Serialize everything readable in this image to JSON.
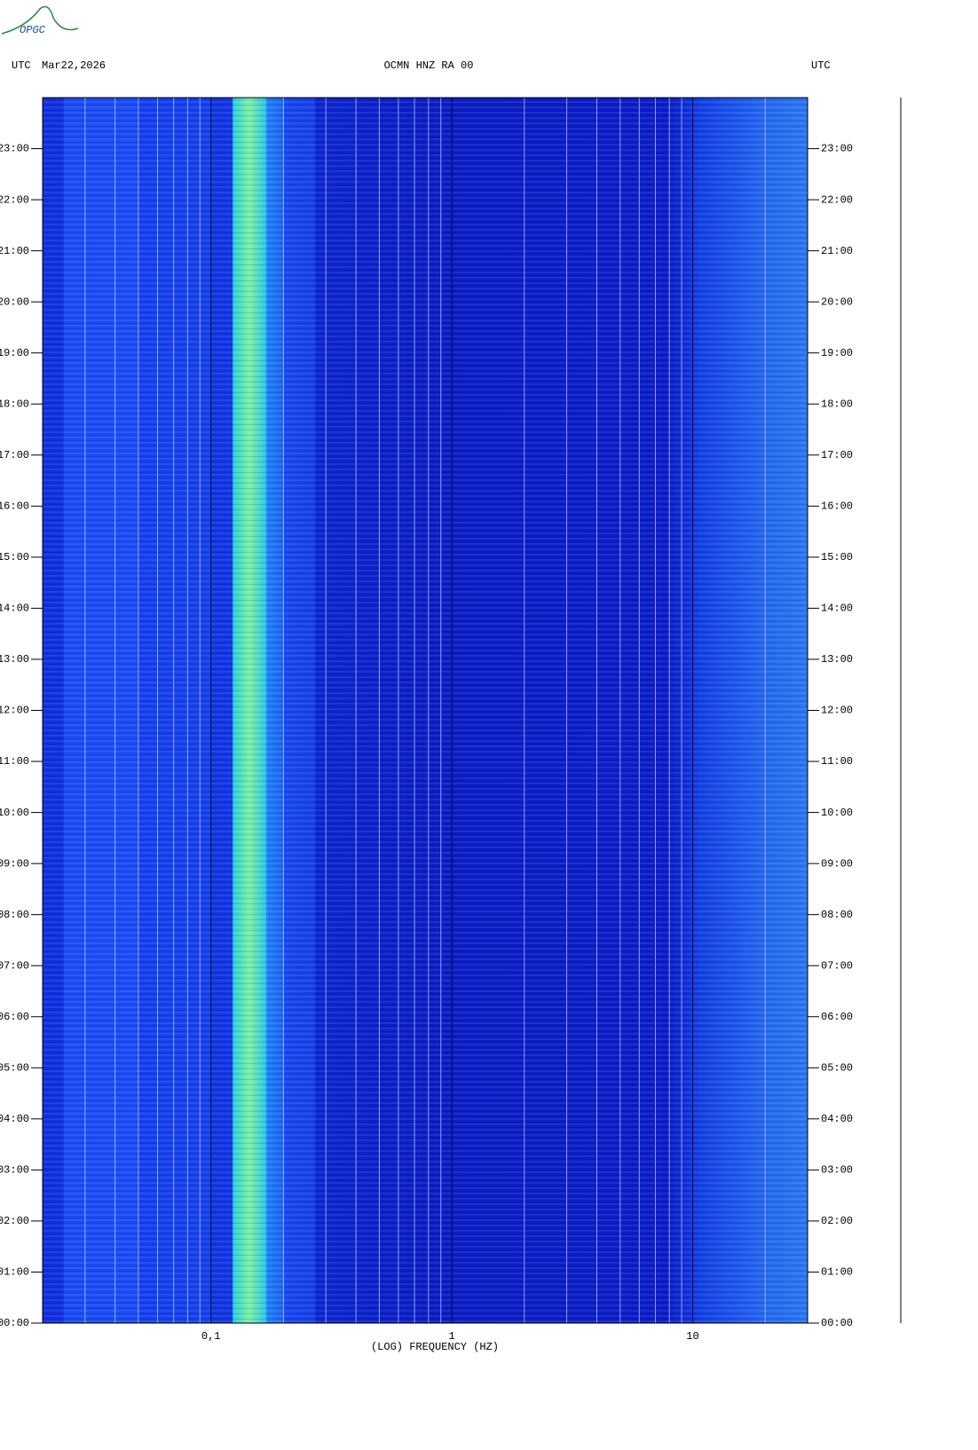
{
  "header": {
    "logo": "OPGC",
    "left_label": "UTC",
    "date": "Mar22,2026",
    "station": "OCMN HNZ RA 00",
    "right_label": "UTC"
  },
  "chart_data": {
    "type": "spectrogram",
    "x_label": "(LOG) FREQUENCY (HZ)",
    "xscale": "log",
    "xlim": [
      0.02,
      30
    ],
    "xticks": [
      {
        "value": 0.1,
        "label": "0,1"
      },
      1,
      10
    ],
    "xgrid": [
      0.03,
      0.04,
      0.05,
      0.06,
      0.07,
      0.08,
      0.09,
      0.2,
      0.3,
      0.4,
      0.5,
      0.6,
      0.7,
      0.8,
      0.9,
      2,
      3,
      4,
      5,
      6,
      7,
      8,
      9,
      20
    ],
    "ylim": [
      0,
      24
    ],
    "yticks": [
      {
        "value": 0,
        "label": "00:00"
      },
      {
        "value": 1,
        "label": "01:00"
      },
      {
        "value": 2,
        "label": "02:00"
      },
      {
        "value": 3,
        "label": "03:00"
      },
      {
        "value": 4,
        "label": "04:00"
      },
      {
        "value": 5,
        "label": "05:00"
      },
      {
        "value": 6,
        "label": "06:00"
      },
      {
        "value": 7,
        "label": "07:00"
      },
      {
        "value": 8,
        "label": "08:00"
      },
      {
        "value": 9,
        "label": "09:00"
      },
      {
        "value": 10,
        "label": "10:00"
      },
      {
        "value": 11,
        "label": "11:00"
      },
      {
        "value": 12,
        "label": "12:00"
      },
      {
        "value": 13,
        "label": "13:00"
      },
      {
        "value": 14,
        "label": "14:00"
      },
      {
        "value": 15,
        "label": "15:00"
      },
      {
        "value": 16,
        "label": "16:00"
      },
      {
        "value": 17,
        "label": "17:00"
      },
      {
        "value": 18,
        "label": "18:00"
      },
      {
        "value": 19,
        "label": "19:00"
      },
      {
        "value": 20,
        "label": "20:00"
      },
      {
        "value": 21,
        "label": "21:00"
      },
      {
        "value": 22,
        "label": "22:00"
      },
      {
        "value": 23,
        "label": "23:00"
      }
    ]
  }
}
